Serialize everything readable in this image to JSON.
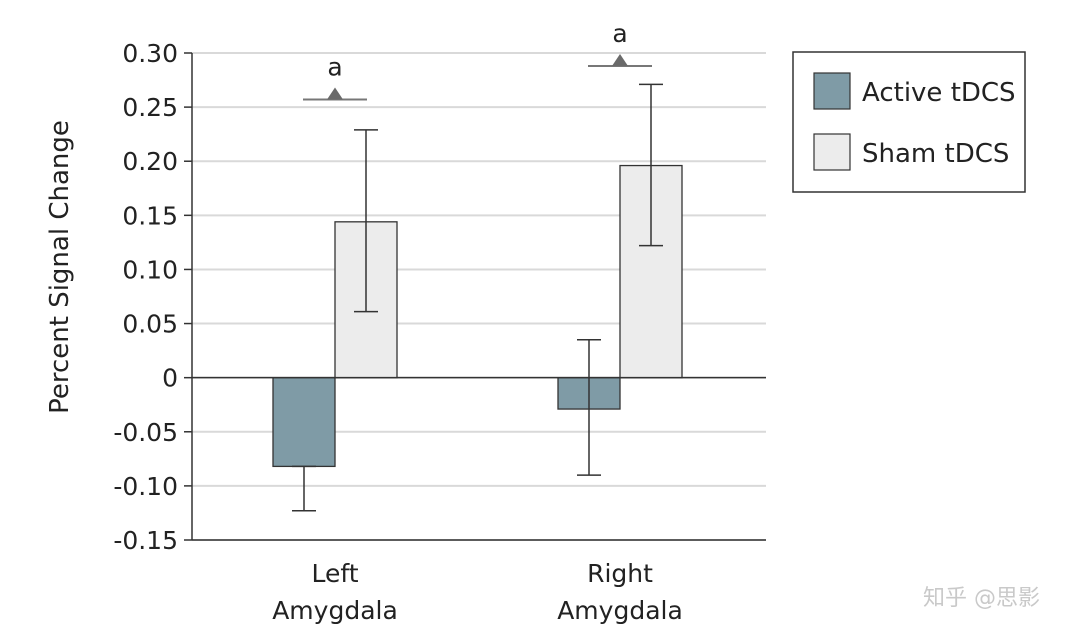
{
  "chart_data": {
    "type": "bar",
    "title": "",
    "xlabel": "",
    "ylabel": "Percent Signal Change",
    "ylim": [
      -0.15,
      0.3
    ],
    "yticks": [
      0.3,
      0.25,
      0.2,
      0.15,
      0.1,
      0.05,
      0,
      -0.05,
      -0.1,
      -0.15
    ],
    "ytick_labels": [
      "0.30",
      "0.25",
      "0.20",
      "0.15",
      "0.10",
      "0.05",
      "0",
      "-0.05",
      "-0.10",
      "-0.15"
    ],
    "grid": true,
    "categories": [
      {
        "line1": "Left",
        "line2": "Amygdala"
      },
      {
        "line1": "Right",
        "line2": "Amygdala"
      }
    ],
    "series": [
      {
        "name": "Active tDCS",
        "color": "#7f9ba6",
        "values": [
          -0.082,
          -0.029
        ],
        "err_low": [
          -0.123,
          -0.09
        ],
        "err_high": [
          -0.082,
          0.035
        ]
      },
      {
        "name": "Sham tDCS",
        "color": "#ececec",
        "values": [
          0.144,
          0.196
        ],
        "err_low": [
          0.061,
          0.122
        ],
        "err_high": [
          0.229,
          0.271
        ]
      }
    ],
    "significance": [
      {
        "label": "a",
        "marker_value": 0.257
      },
      {
        "label": "a",
        "marker_value": 0.288
      }
    ],
    "legend_position": "top-right"
  },
  "watermark": "知乎 @思影"
}
